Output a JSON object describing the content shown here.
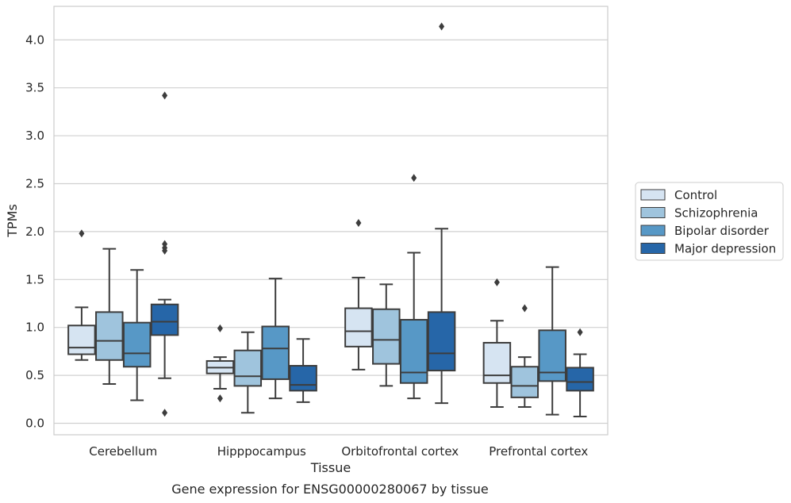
{
  "chart_data": {
    "type": "box",
    "xlabel": "Tissue",
    "ylabel": "TPMs",
    "caption": "Gene expression for ENSG00000280067 by tissue",
    "categories": [
      "Cerebellum",
      "Hipppocampus",
      "Orbitofrontal cortex",
      "Prefrontal cortex"
    ],
    "ylim": [
      -0.12,
      4.35
    ],
    "yticks": [
      "0.0",
      "0.5",
      "1.0",
      "1.5",
      "2.0",
      "2.5",
      "3.0",
      "3.5",
      "4.0"
    ],
    "grid": "horizontal",
    "legend_position": "right",
    "series": [
      {
        "name": "Control",
        "color": "#d6e4f2",
        "boxes": [
          {
            "whisker_low": 0.66,
            "q1": 0.72,
            "median": 0.79,
            "q3": 1.02,
            "whisker_high": 1.21,
            "outliers": [
              1.98
            ]
          },
          {
            "whisker_low": 0.36,
            "q1": 0.52,
            "median": 0.58,
            "q3": 0.65,
            "whisker_high": 0.69,
            "outliers": [
              0.99,
              0.26
            ]
          },
          {
            "whisker_low": 0.56,
            "q1": 0.8,
            "median": 0.96,
            "q3": 1.2,
            "whisker_high": 1.52,
            "outliers": [
              2.09
            ]
          },
          {
            "whisker_low": 0.17,
            "q1": 0.42,
            "median": 0.5,
            "q3": 0.84,
            "whisker_high": 1.07,
            "outliers": [
              1.47
            ]
          }
        ]
      },
      {
        "name": "Schizophrenia",
        "color": "#9fc4dd",
        "boxes": [
          {
            "whisker_low": 0.41,
            "q1": 0.66,
            "median": 0.86,
            "q3": 1.16,
            "whisker_high": 1.82,
            "outliers": []
          },
          {
            "whisker_low": 0.11,
            "q1": 0.39,
            "median": 0.49,
            "q3": 0.76,
            "whisker_high": 0.95,
            "outliers": []
          },
          {
            "whisker_low": 0.39,
            "q1": 0.62,
            "median": 0.87,
            "q3": 1.19,
            "whisker_high": 1.45,
            "outliers": []
          },
          {
            "whisker_low": 0.17,
            "q1": 0.27,
            "median": 0.39,
            "q3": 0.59,
            "whisker_high": 0.69,
            "outliers": [
              1.2
            ]
          }
        ]
      },
      {
        "name": "Bipolar disorder",
        "color": "#5798c6",
        "boxes": [
          {
            "whisker_low": 0.24,
            "q1": 0.59,
            "median": 0.73,
            "q3": 1.05,
            "whisker_high": 1.6,
            "outliers": []
          },
          {
            "whisker_low": 0.26,
            "q1": 0.46,
            "median": 0.78,
            "q3": 1.01,
            "whisker_high": 1.51,
            "outliers": []
          },
          {
            "whisker_low": 0.26,
            "q1": 0.42,
            "median": 0.53,
            "q3": 1.08,
            "whisker_high": 1.78,
            "outliers": [
              2.56
            ]
          },
          {
            "whisker_low": 0.09,
            "q1": 0.44,
            "median": 0.53,
            "q3": 0.97,
            "whisker_high": 1.63,
            "outliers": []
          }
        ]
      },
      {
        "name": "Major depression",
        "color": "#2666a8",
        "boxes": [
          {
            "whisker_low": 0.47,
            "q1": 0.92,
            "median": 1.06,
            "q3": 1.24,
            "whisker_high": 1.29,
            "outliers": [
              1.87,
              1.83,
              1.8,
              3.42,
              0.11
            ]
          },
          {
            "whisker_low": 0.22,
            "q1": 0.34,
            "median": 0.4,
            "q3": 0.6,
            "whisker_high": 0.88,
            "outliers": []
          },
          {
            "whisker_low": 0.21,
            "q1": 0.55,
            "median": 0.73,
            "q3": 1.16,
            "whisker_high": 2.03,
            "outliers": [
              4.14
            ]
          },
          {
            "whisker_low": 0.07,
            "q1": 0.34,
            "median": 0.43,
            "q3": 0.58,
            "whisker_high": 0.72,
            "outliers": [
              0.95
            ]
          }
        ]
      }
    ]
  }
}
